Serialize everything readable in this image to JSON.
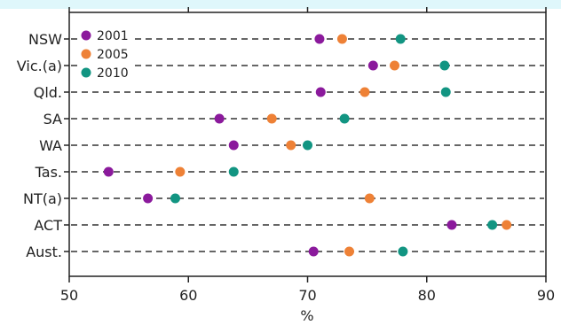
{
  "chart_data": {
    "type": "scatter",
    "xlabel": "%",
    "xlim": [
      50,
      90
    ],
    "xticks": [
      50,
      60,
      70,
      80,
      90
    ],
    "categories": [
      "NSW",
      "Vic.(a)",
      "Qld.",
      "SA",
      "WA",
      "Tas.",
      "NT(a)",
      "ACT",
      "Aust."
    ],
    "series": [
      {
        "name": "2001",
        "color": "#8b1a9c",
        "values": [
          71.0,
          75.5,
          71.1,
          62.6,
          63.8,
          53.3,
          56.6,
          82.1,
          70.5
        ]
      },
      {
        "name": "2005",
        "color": "#ee8136",
        "values": [
          72.9,
          77.3,
          74.8,
          67.0,
          68.6,
          null,
          75.2,
          86.7,
          73.5
        ]
      },
      {
        "name": "2010",
        "color": "#129582",
        "values": [
          77.8,
          81.5,
          81.6,
          73.1,
          70.0,
          63.8,
          58.9,
          85.5,
          78.0
        ]
      }
    ],
    "extra_points": [
      {
        "category": "Tas.",
        "series": "2005",
        "value": 59.3
      }
    ],
    "legend_position": "top-left",
    "grid": "dashed horizontal per category"
  }
}
